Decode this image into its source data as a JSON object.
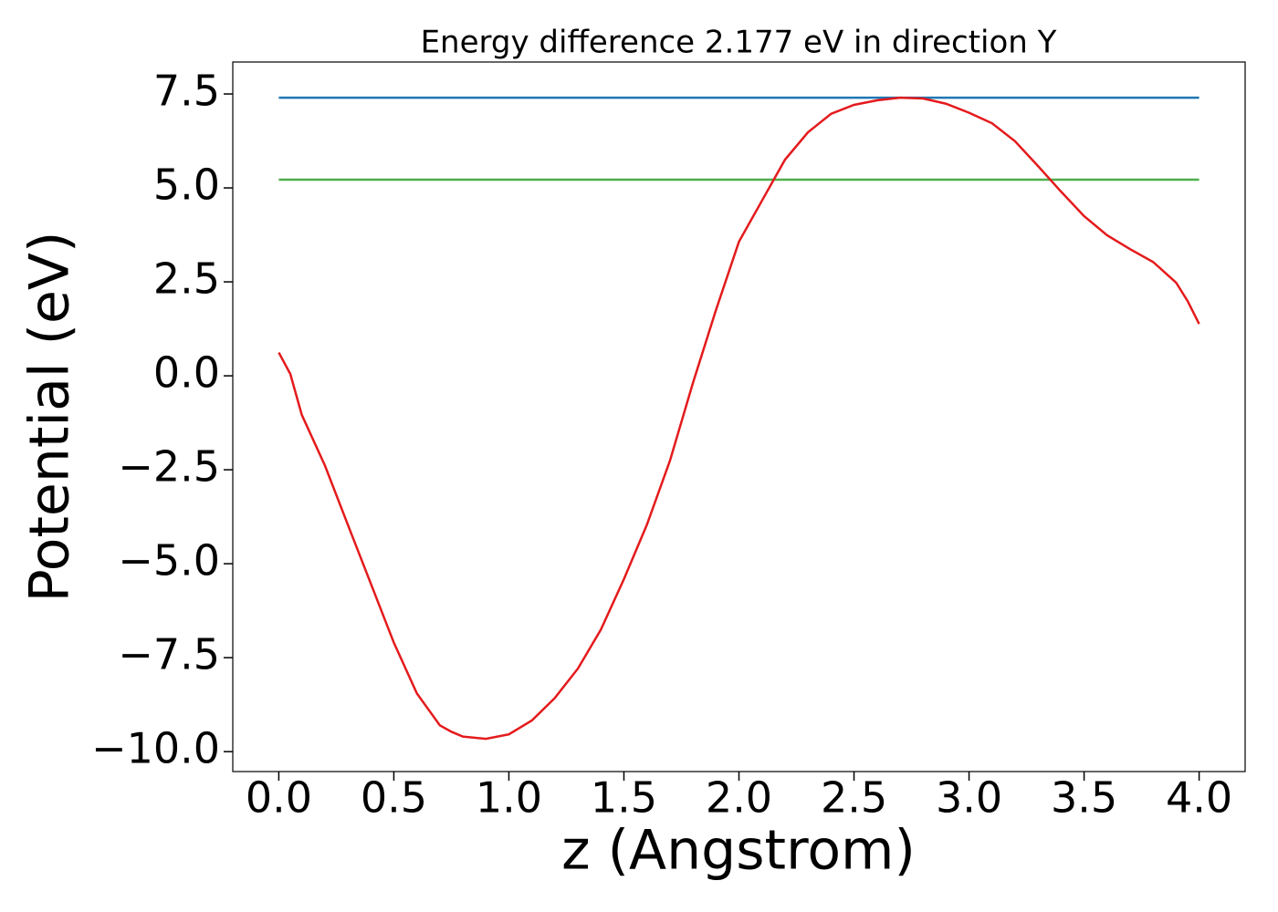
{
  "chart_data": {
    "type": "line",
    "title": "Energy difference 2.177 eV in direction Y",
    "xlabel": "z (Angstrom)",
    "ylabel": "Potential (eV)",
    "x": [
      0,
      0.05,
      0.1,
      0.2,
      0.3,
      0.4,
      0.5,
      0.6,
      0.7,
      0.75,
      0.8,
      0.9,
      1.0,
      1.1,
      1.2,
      1.3,
      1.4,
      1.5,
      1.6,
      1.7,
      1.8,
      1.9,
      2.0,
      2.1,
      2.2,
      2.3,
      2.4,
      2.5,
      2.6,
      2.7,
      2.8,
      2.9,
      3.0,
      3.1,
      3.2,
      3.3,
      3.4,
      3.5,
      3.6,
      3.7,
      3.8,
      3.9,
      3.95,
      4.0
    ],
    "series": [
      {
        "color": "#1f77b4",
        "x": [
          0,
          4
        ],
        "values": [
          7.4,
          7.4
        ]
      },
      {
        "color": "#4daf4a",
        "x": [
          0,
          4
        ],
        "values": [
          5.22,
          5.22
        ]
      },
      {
        "color": "#e41a1c",
        "values": [
          0.62,
          0.05,
          -1.04,
          -2.38,
          -3.96,
          -5.53,
          -7.1,
          -8.45,
          -9.3,
          -9.47,
          -9.6,
          -9.66,
          -9.54,
          -9.17,
          -8.57,
          -7.79,
          -6.75,
          -5.41,
          -3.96,
          -2.26,
          -0.19,
          1.75,
          3.57,
          4.66,
          5.75,
          6.48,
          6.97,
          7.21,
          7.33,
          7.4,
          7.38,
          7.24,
          7.0,
          6.72,
          6.24,
          5.58,
          4.9,
          4.25,
          3.74,
          3.37,
          3.03,
          2.48,
          1.99,
          1.38
        ]
      }
    ],
    "xlim": [
      -0.2,
      4.2
    ],
    "ylim": [
      -10.53,
      8.35
    ],
    "xticks": [
      {
        "value": 0,
        "label": "0.0"
      },
      0.5,
      {
        "value": 1,
        "label": "1.0"
      },
      1.5,
      {
        "value": 2,
        "label": "2.0"
      },
      2.5,
      {
        "value": 3,
        "label": "3.0"
      },
      3.5,
      {
        "value": 4,
        "label": "4.0"
      }
    ],
    "yticks": [
      {
        "value": -10,
        "label": "−10.0"
      },
      {
        "value": -7.5,
        "label": "−7.5"
      },
      {
        "value": -5,
        "label": "−5.0"
      },
      {
        "value": -2.5,
        "label": "−2.5"
      },
      {
        "value": 0,
        "label": "0.0"
      },
      {
        "value": 2.5,
        "label": "2.5"
      },
      {
        "value": 5,
        "label": "5.0"
      },
      7.5
    ],
    "grid": false
  }
}
